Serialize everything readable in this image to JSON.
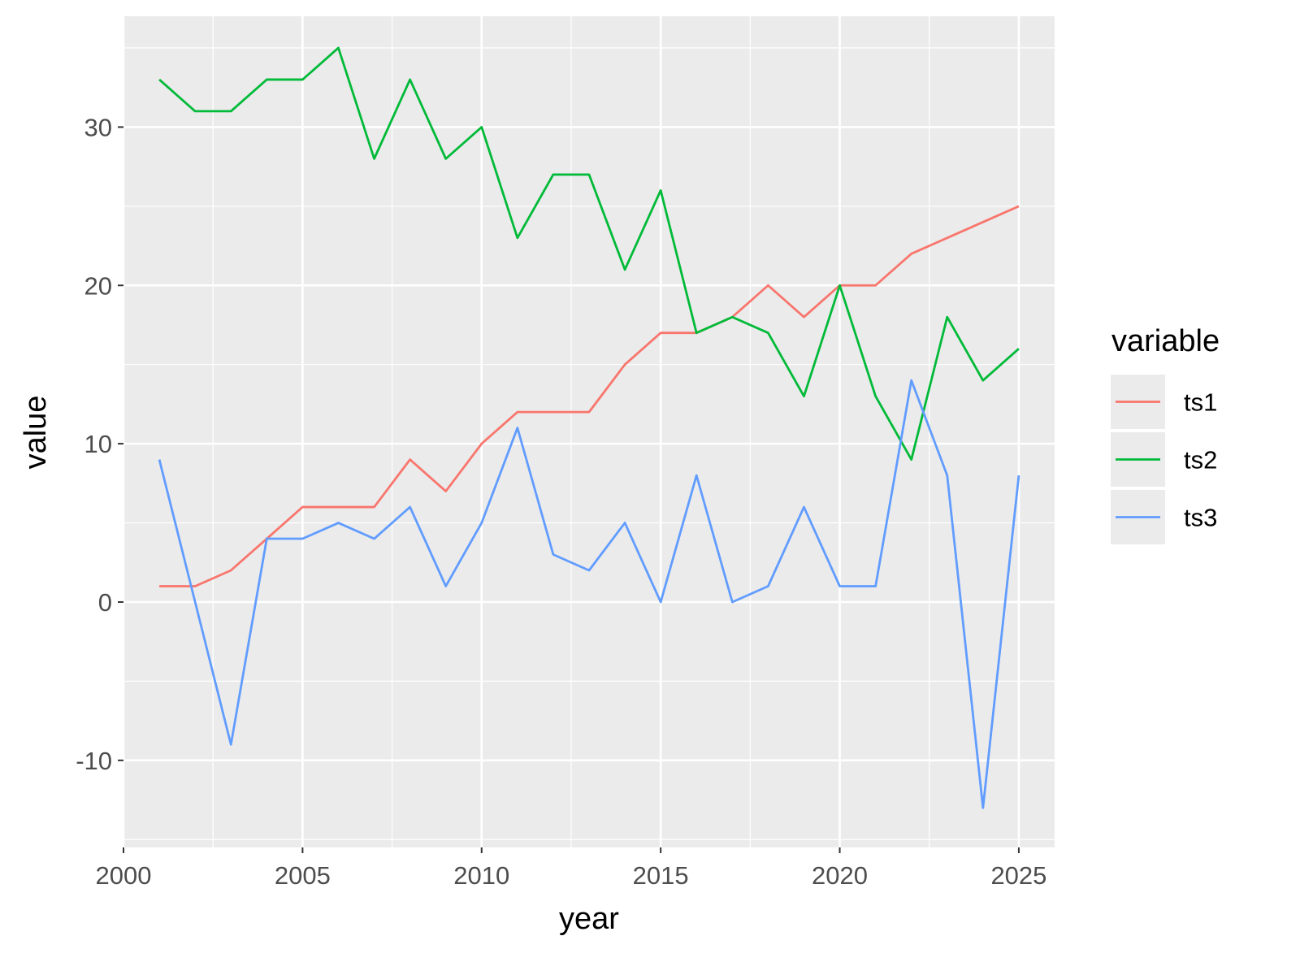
{
  "chart_data": {
    "type": "line",
    "title": "",
    "xlabel": "year",
    "ylabel": "value",
    "x": [
      2001,
      2002,
      2003,
      2004,
      2005,
      2006,
      2007,
      2008,
      2009,
      2010,
      2011,
      2012,
      2013,
      2014,
      2015,
      2016,
      2017,
      2018,
      2019,
      2020,
      2021,
      2022,
      2023,
      2024,
      2025
    ],
    "xlim": [
      2000,
      2026
    ],
    "ylim": [
      -15.5,
      37
    ],
    "x_ticks": [
      2000,
      2005,
      2010,
      2015,
      2020,
      2025
    ],
    "y_ticks": [
      -10,
      0,
      10,
      20,
      30
    ],
    "x_tick_labels": [
      "2000",
      "2005",
      "2010",
      "2015",
      "2020",
      "2025"
    ],
    "y_tick_labels": [
      "-10",
      "0",
      "10",
      "20",
      "30"
    ],
    "grid": true,
    "legend": {
      "title": "variable",
      "placement": "right"
    },
    "series": [
      {
        "name": "ts1",
        "color": "#F8766D",
        "values": [
          1,
          1,
          2,
          4,
          6,
          6,
          6,
          9,
          7,
          10,
          12,
          12,
          12,
          15,
          17,
          17,
          18,
          20,
          18,
          20,
          20,
          22,
          23,
          24,
          25
        ]
      },
      {
        "name": "ts2",
        "color": "#00BA38",
        "values": [
          33,
          31,
          31,
          33,
          33,
          35,
          28,
          33,
          28,
          30,
          23,
          27,
          27,
          21,
          26,
          17,
          18,
          17,
          13,
          20,
          13,
          9,
          18,
          14,
          16
        ]
      },
      {
        "name": "ts3",
        "color": "#619CFF",
        "values": [
          9,
          0,
          -9,
          4,
          4,
          5,
          4,
          6,
          1,
          5,
          11,
          3,
          2,
          5,
          0,
          8,
          0,
          1,
          6,
          1,
          1,
          14,
          8,
          -13,
          8
        ]
      }
    ]
  }
}
